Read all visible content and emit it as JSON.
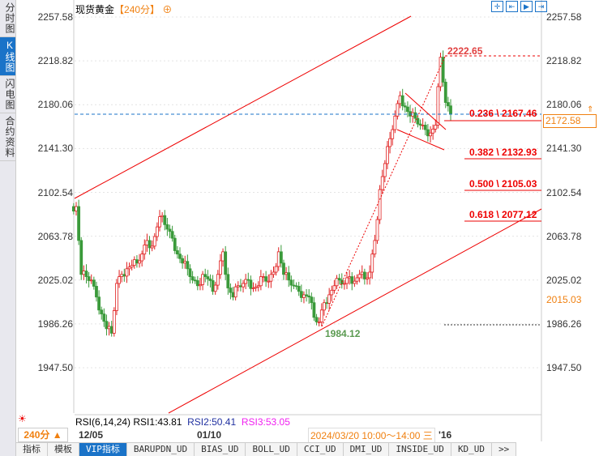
{
  "sidebar": {
    "items": [
      {
        "label": "分时图"
      },
      {
        "label": "K线图",
        "active": true
      },
      {
        "label": "闪电图"
      },
      {
        "label": "合约资料"
      }
    ]
  },
  "header": {
    "title": "现货黄金",
    "period": "【240分】",
    "icon": "crosshair-add-icon"
  },
  "toolbar_icons": [
    "crosshair-icon",
    "zoom-range-icon",
    "zoom-play-icon",
    "jump-end-icon"
  ],
  "price_axis": {
    "ticks": [
      "2257.58",
      "2218.82",
      "2180.06",
      "2141.30",
      "2102.54",
      "2063.78",
      "2025.02",
      "1986.26",
      "1947.50"
    ],
    "current_price": "2172.58",
    "cursor_price": "2015.03"
  },
  "annotations": {
    "high": "2222.65",
    "low": "1984.12",
    "fib": [
      "0.236 \\ 2167.46",
      "0.382 \\ 2132.93",
      "0.500 \\ 2105.03",
      "0.618 \\ 2077.12"
    ]
  },
  "indicator": {
    "name": "RSI(6,14,24)",
    "rsi1": "RSI1:43.81",
    "rsi2": "RSI2:50.41",
    "rsi3": "RSI3:53.05"
  },
  "time_axis": {
    "period_button": "240分 ▲",
    "dates": [
      "12/05",
      "01/10"
    ],
    "crosshair_time": "2024/03/20 10:00～14:00 三",
    "tail": "'16"
  },
  "tabs": [
    "指标",
    "模板",
    "VIP指标",
    "BARUPDN_UD",
    "BIAS_UD",
    "BOLL_UD",
    "CCI_UD",
    "DMI_UD",
    "INSIDE_UD",
    "KD_UD",
    ">>"
  ],
  "colors": {
    "up": "#e02020",
    "down": "#3a9a3a",
    "accent": "#1a73c8",
    "orange": "#f08010"
  },
  "chart_data": {
    "type": "candlestick",
    "ylim": [
      1947.5,
      2257.58
    ],
    "closes": [
      2090,
      2030,
      2028,
      2025,
      2010,
      1995,
      1982,
      1978,
      2022,
      2030,
      2035,
      2038,
      2040,
      2048,
      2060,
      2055,
      2072,
      2082,
      2070,
      2062,
      2048,
      2040,
      2035,
      2025,
      2020,
      2030,
      2026,
      2015,
      2030,
      2050,
      2018,
      2010,
      2020,
      2022,
      2025,
      2018,
      2020,
      2028,
      2024,
      2032,
      2050,
      2030,
      2025,
      2020,
      2015,
      2012,
      2010,
      1992,
      1988,
      2005,
      2012,
      2020,
      2025,
      2022,
      2028,
      2024,
      2030,
      2026,
      2032,
      2060,
      2105,
      2128,
      2150,
      2170,
      2188,
      2178,
      2170,
      2168,
      2162,
      2158,
      2155,
      2162,
      2222,
      2182,
      2172
    ]
  }
}
